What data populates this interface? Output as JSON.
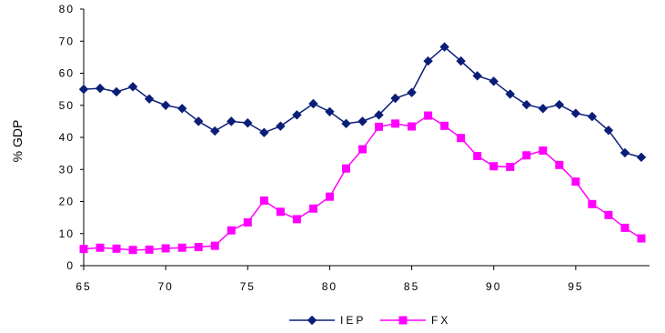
{
  "chart_data": {
    "type": "line",
    "ylabel": "% GDP",
    "xlabel": "",
    "xlim": [
      65,
      99.5
    ],
    "ylim": [
      0,
      80
    ],
    "xticks": [
      65,
      70,
      75,
      80,
      85,
      90,
      95
    ],
    "xtick_labels": [
      "65",
      "70",
      "75",
      "80",
      "85",
      "90",
      "95"
    ],
    "yticks": [
      0,
      10,
      20,
      30,
      40,
      50,
      60,
      70,
      80
    ],
    "ytick_labels": [
      "0",
      "10",
      "20",
      "30",
      "40",
      "50",
      "60",
      "70",
      "80"
    ],
    "grid": false,
    "legend_position": "bottom-center",
    "x": [
      65,
      66,
      67,
      68,
      69,
      70,
      71,
      72,
      73,
      74,
      75,
      76,
      77,
      78,
      79,
      80,
      81,
      82,
      83,
      84,
      85,
      86,
      87,
      88,
      89,
      90,
      91,
      92,
      93,
      94,
      95,
      96,
      97,
      98,
      99
    ],
    "series": [
      {
        "name": "IEP",
        "color": "#0a1e78",
        "marker": "diamond",
        "values": [
          55,
          55.3,
          54.2,
          55.8,
          52,
          50,
          49,
          45,
          42,
          45,
          44.5,
          41.5,
          43.5,
          47,
          50.5,
          48,
          44.3,
          45,
          47,
          52.2,
          54,
          63.8,
          68.2,
          63.8,
          59.2,
          57.5,
          53.5,
          50.2,
          49,
          50.2,
          47.5,
          46.5,
          42.2,
          35.2,
          33.8
        ]
      },
      {
        "name": "FX",
        "color": "#ff00ff",
        "marker": "square",
        "values": [
          5.2,
          5.6,
          5.3,
          4.9,
          5,
          5.4,
          5.6,
          5.8,
          6.2,
          11,
          13.5,
          20.3,
          16.8,
          14.5,
          17.8,
          21.5,
          30.3,
          36.3,
          43.3,
          44.3,
          43.4,
          46.8,
          43.6,
          39.8,
          34.2,
          31,
          30.8,
          34.4,
          35.9,
          31.4,
          26.2,
          19.2,
          15.8,
          11.8,
          8.5
        ]
      }
    ]
  }
}
